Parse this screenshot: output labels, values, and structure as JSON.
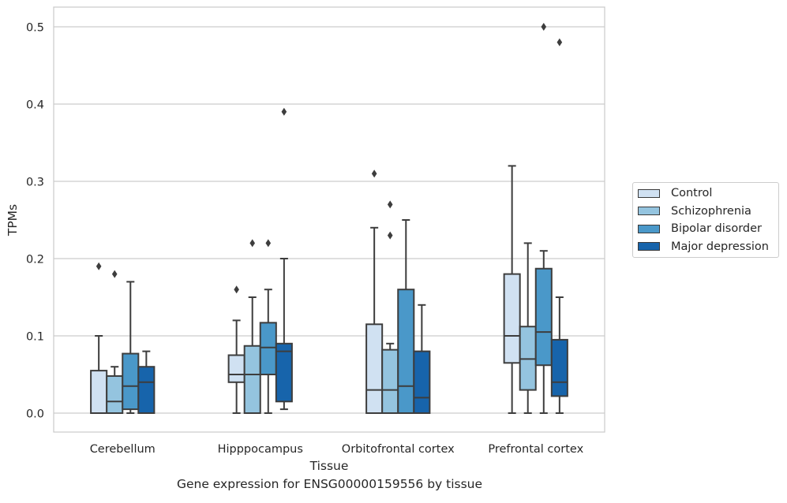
{
  "chart_data": {
    "type": "box",
    "title": "",
    "caption": "Gene expression for ENSG00000159556 by tissue",
    "xlabel": "Tissue",
    "ylabel": "TPMs",
    "ylim": [
      -0.025,
      0.526
    ],
    "yticks": [
      "0.0",
      "0.1",
      "0.2",
      "0.3",
      "0.4",
      "0.5"
    ],
    "grid": "horizontal",
    "legend_position": "right",
    "categories": [
      "Cerebellum",
      "Hipppocampus",
      "Orbitofrontal cortex",
      "Prefrontal cortex"
    ],
    "series": [
      {
        "name": "Control",
        "color": "#d0e1f2",
        "boxes": [
          {
            "whislo": 0.0,
            "q1": 0.0,
            "med": 0.0,
            "q3": 0.055,
            "whishi": 0.1,
            "fliers": [
              0.19
            ]
          },
          {
            "whislo": 0.0,
            "q1": 0.04,
            "med": 0.05,
            "q3": 0.075,
            "whishi": 0.12,
            "fliers": [
              0.16
            ]
          },
          {
            "whislo": 0.0,
            "q1": 0.0,
            "med": 0.03,
            "q3": 0.115,
            "whishi": 0.24,
            "fliers": [
              0.31
            ]
          },
          {
            "whislo": 0.0,
            "q1": 0.065,
            "med": 0.1,
            "q3": 0.18,
            "whishi": 0.32,
            "fliers": []
          }
        ]
      },
      {
        "name": "Schizophrenia",
        "color": "#94c4df",
        "boxes": [
          {
            "whislo": 0.0,
            "q1": 0.0,
            "med": 0.015,
            "q3": 0.048,
            "whishi": 0.06,
            "fliers": [
              0.18
            ]
          },
          {
            "whislo": 0.0,
            "q1": 0.0,
            "med": 0.05,
            "q3": 0.087,
            "whishi": 0.15,
            "fliers": [
              0.22
            ]
          },
          {
            "whislo": 0.0,
            "q1": 0.0,
            "med": 0.03,
            "q3": 0.082,
            "whishi": 0.09,
            "fliers": [
              0.27,
              0.23
            ]
          },
          {
            "whislo": 0.0,
            "q1": 0.03,
            "med": 0.07,
            "q3": 0.112,
            "whishi": 0.22,
            "fliers": []
          }
        ]
      },
      {
        "name": "Bipolar disorder",
        "color": "#4a98c9",
        "boxes": [
          {
            "whislo": 0.0,
            "q1": 0.005,
            "med": 0.035,
            "q3": 0.077,
            "whishi": 0.17,
            "fliers": []
          },
          {
            "whislo": 0.0,
            "q1": 0.05,
            "med": 0.085,
            "q3": 0.117,
            "whishi": 0.16,
            "fliers": [
              0.22
            ]
          },
          {
            "whislo": 0.0,
            "q1": 0.0,
            "med": 0.035,
            "q3": 0.16,
            "whishi": 0.25,
            "fliers": []
          },
          {
            "whislo": 0.0,
            "q1": 0.062,
            "med": 0.105,
            "q3": 0.187,
            "whishi": 0.21,
            "fliers": [
              0.5
            ]
          }
        ]
      },
      {
        "name": "Major depression",
        "color": "#1764ab",
        "boxes": [
          {
            "whislo": 0.0,
            "q1": 0.0,
            "med": 0.04,
            "q3": 0.06,
            "whishi": 0.08,
            "fliers": []
          },
          {
            "whislo": 0.005,
            "q1": 0.015,
            "med": 0.08,
            "q3": 0.09,
            "whishi": 0.2,
            "fliers": [
              0.39
            ]
          },
          {
            "whislo": 0.0,
            "q1": 0.0,
            "med": 0.02,
            "q3": 0.08,
            "whishi": 0.14,
            "fliers": []
          },
          {
            "whislo": 0.0,
            "q1": 0.022,
            "med": 0.04,
            "q3": 0.095,
            "whishi": 0.15,
            "fliers": [
              0.48
            ]
          }
        ]
      }
    ]
  }
}
